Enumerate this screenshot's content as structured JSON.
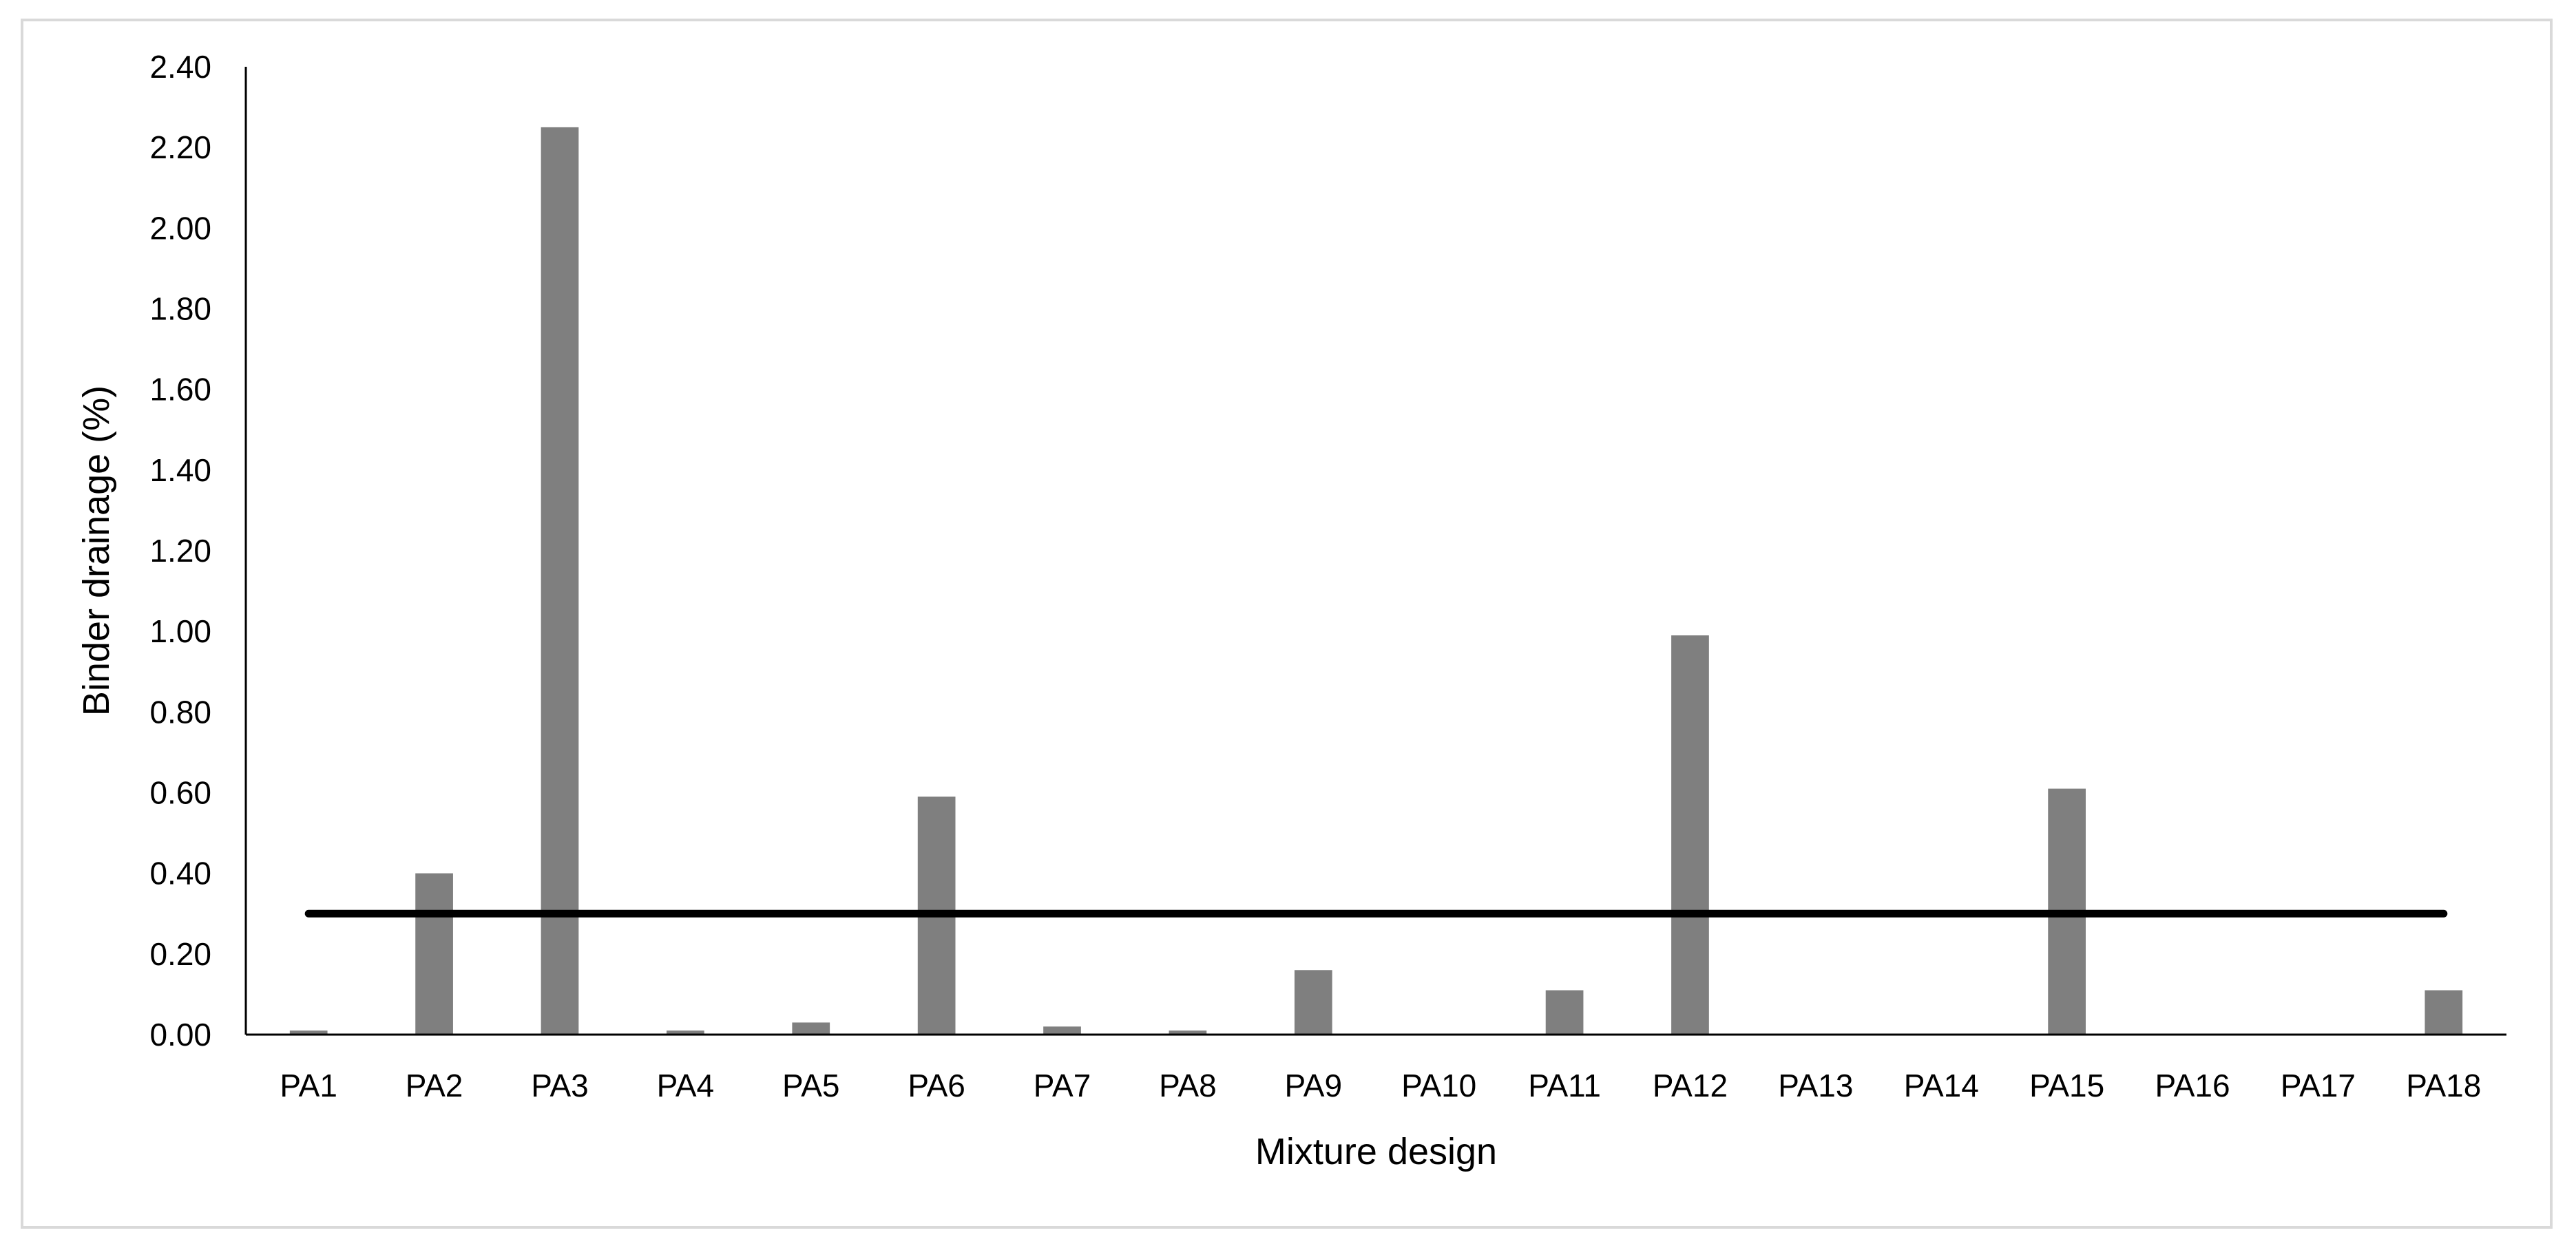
{
  "chart_data": {
    "type": "bar",
    "title": "",
    "xlabel": "Mixture design",
    "ylabel": "Binder drainage (%)",
    "categories": [
      "PA1",
      "PA2",
      "PA3",
      "PA4",
      "PA5",
      "PA6",
      "PA7",
      "PA8",
      "PA9",
      "PA10",
      "PA11",
      "PA12",
      "PA13",
      "PA14",
      "PA15",
      "PA16",
      "PA17",
      "PA18"
    ],
    "series": [
      {
        "values": [
          0.01,
          0.4,
          2.25,
          0.01,
          0.03,
          0.59,
          0.02,
          0.01,
          0.16,
          0,
          0.11,
          0.99,
          0,
          0,
          0.61,
          0,
          0,
          0.11
        ],
        "color": "#7f7f7f"
      }
    ],
    "ylim": [
      0,
      2.4
    ],
    "yticks": [
      "0.00",
      "0.20",
      "0.40",
      "0.60",
      "0.80",
      "1.00",
      "1.20",
      "1.40",
      "1.60",
      "1.80",
      "2.00",
      "2.20",
      "2.40"
    ],
    "reference_line": {
      "value": 0.3,
      "from_category": "PA1",
      "to_category": "PA18",
      "color": "#000000"
    },
    "grid": false,
    "legend": "none"
  }
}
